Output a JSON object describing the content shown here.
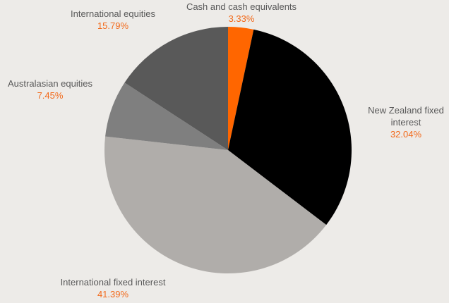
{
  "chart_data": {
    "type": "pie",
    "title": "",
    "start_angle_deg": 0,
    "direction": "clockwise",
    "categories": [
      "Cash and cash equivalents",
      "New Zealand fixed interest",
      "International fixed interest",
      "Australasian equities",
      "International equities"
    ],
    "values": [
      3.33,
      32.04,
      41.39,
      7.45,
      15.79
    ],
    "colors": [
      "#ff6600",
      "#000000",
      "#b0adaa",
      "#7f7f7f",
      "#595959"
    ],
    "value_labels": [
      "3.33%",
      "32.04%",
      "41.39%",
      "7.45%",
      "15.79%"
    ],
    "label_color": "#595959",
    "value_label_color": "#f26a1b",
    "legend": "none (data labels outside slices)"
  },
  "labels": {
    "cash": {
      "name": "Cash and cash equivalents",
      "pct": "3.33%"
    },
    "nz_fixed": {
      "name": "New Zealand fixed interest",
      "pct": "32.04%"
    },
    "intl_fixed": {
      "name": "International fixed interest",
      "pct": "41.39%"
    },
    "aus_equities": {
      "name": "Australasian equities",
      "pct": "7.45%"
    },
    "intl_equities": {
      "name": "International equities",
      "pct": "15.79%"
    }
  }
}
